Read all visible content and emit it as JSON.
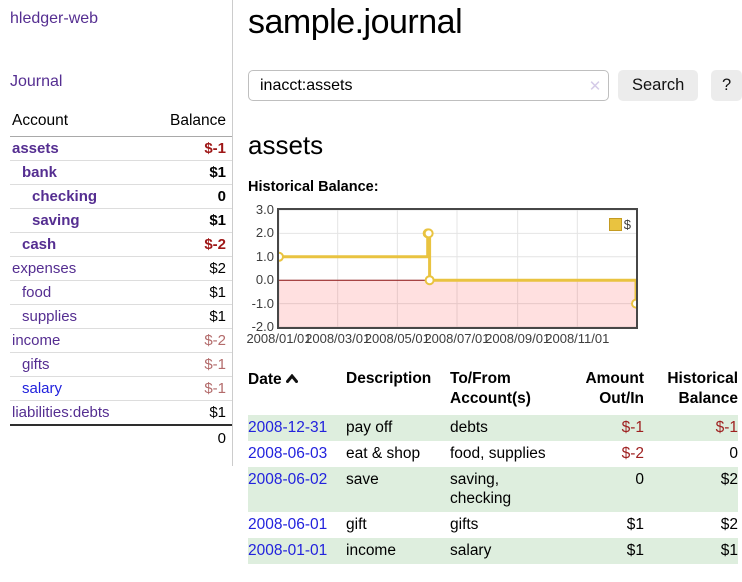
{
  "app": {
    "brand": "hledger-web"
  },
  "sidebar": {
    "nav": {
      "journal": "Journal"
    },
    "columns": {
      "account": "Account",
      "balance": "Balance"
    },
    "accounts": [
      {
        "name": "assets",
        "balance": "$-1",
        "depth": 1,
        "emphasized": true,
        "negative": "strong"
      },
      {
        "name": "bank",
        "balance": "$1",
        "depth": 2,
        "emphasized": true,
        "negative": null
      },
      {
        "name": "checking",
        "balance": "0",
        "depth": 3,
        "emphasized": true,
        "negative": null
      },
      {
        "name": "saving",
        "balance": "$1",
        "depth": 3,
        "emphasized": true,
        "negative": null
      },
      {
        "name": "cash",
        "balance": "$-2",
        "depth": 2,
        "emphasized": true,
        "negative": "strong"
      },
      {
        "name": "expenses",
        "balance": "$2",
        "depth": 1,
        "emphasized": false,
        "negative": null
      },
      {
        "name": "food",
        "balance": "$1",
        "depth": 2,
        "emphasized": false,
        "negative": null
      },
      {
        "name": "supplies",
        "balance": "$1",
        "depth": 2,
        "emphasized": false,
        "negative": null
      },
      {
        "name": "income",
        "balance": "$-2",
        "depth": 1,
        "emphasized": false,
        "negative": "muted"
      },
      {
        "name": "gifts",
        "balance": "$-1",
        "depth": 2,
        "emphasized": false,
        "negative": "muted"
      },
      {
        "name": "salary",
        "balance": "$-1",
        "depth": 2,
        "emphasized": false,
        "negative": "muted",
        "unvisited": true
      },
      {
        "name": "liabilities:debts",
        "balance": "$1",
        "depth": 1,
        "emphasized": false,
        "negative": null
      }
    ],
    "total": "0"
  },
  "header": {
    "title": "sample.journal"
  },
  "search": {
    "value": "inacct:assets",
    "button": "Search",
    "help": "?",
    "clear_icon": "✕"
  },
  "account_page": {
    "heading": "assets",
    "chart_label": "Historical Balance:"
  },
  "chart_data": {
    "type": "line",
    "style": "step",
    "title": "Historical Balance:",
    "series": [
      {
        "name": "$",
        "color": "#e9c340",
        "points": [
          [
            "2008-01-01",
            1
          ],
          [
            "2008-06-01",
            2
          ],
          [
            "2008-06-02",
            2
          ],
          [
            "2008-06-03",
            0
          ],
          [
            "2008-12-31",
            -1
          ]
        ]
      }
    ],
    "x_range": [
      "2008-01-01",
      "2008-12-31"
    ],
    "ylim": [
      -2,
      3
    ],
    "yticks": [
      "3.0",
      "2.0",
      "1.0",
      "0.0",
      "-1.0",
      "-2.0"
    ],
    "xticks": [
      "2008/01/01",
      "2008/03/01",
      "2008/05/01",
      "2008/07/01",
      "2008/09/01",
      "2008/11/01"
    ],
    "grid": true,
    "legend_position": "top-right",
    "negative_region_color": "rgba(255,0,0,0.12)",
    "zero_line_color": "#8e1414",
    "grid_color": "#e4e4e4"
  },
  "register": {
    "columns": {
      "date": "Date",
      "description": "Description",
      "accounts": "To/From Account(s)",
      "amount": "Amount Out/In",
      "balance": "Historical Balance"
    },
    "rows": [
      {
        "date": "2008-12-31",
        "description": "pay off",
        "accounts": "debts",
        "amount": "$-1",
        "amount_negative": true,
        "balance": "$-1",
        "balance_negative": true
      },
      {
        "date": "2008-06-03",
        "description": "eat & shop",
        "accounts": "food, supplies",
        "amount": "$-2",
        "amount_negative": true,
        "balance": "0",
        "balance_negative": false
      },
      {
        "date": "2008-06-02",
        "description": "save",
        "accounts": "saving,\nchecking",
        "amount": "0",
        "amount_negative": false,
        "balance": "$2",
        "balance_negative": false
      },
      {
        "date": "2008-06-01",
        "description": "gift",
        "accounts": "gifts",
        "amount": "$1",
        "amount_negative": false,
        "balance": "$2",
        "balance_negative": false
      },
      {
        "date": "2008-01-01",
        "description": "income",
        "accounts": "salary",
        "amount": "$1",
        "amount_negative": false,
        "balance": "$1",
        "balance_negative": false
      }
    ]
  },
  "colors": {
    "link_visited_purple": "#552e91",
    "link_blue": "#2222dd",
    "negative_strong_red": "#9e1717",
    "negative_muted_red": "#b36b6b",
    "row_stripe_green": "#deeede",
    "series_gold": "#e9c340",
    "negative_region_pink": "rgba(255,0,0,0.12)",
    "zero_line_dark_red": "#8e1414"
  }
}
